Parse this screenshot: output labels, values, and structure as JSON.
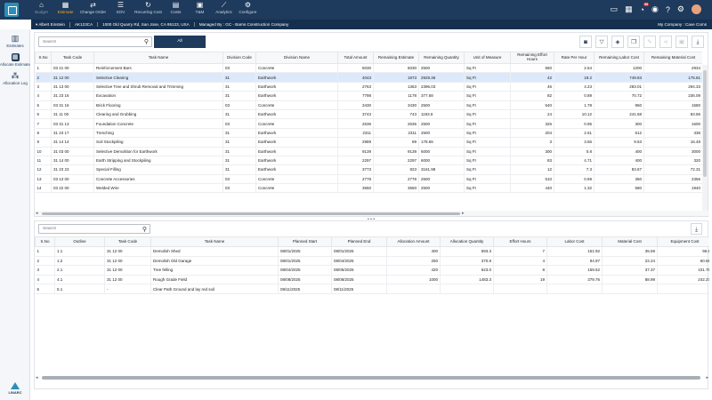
{
  "nav": [
    {
      "icon": "home-icon",
      "glyph": "⌂",
      "label": "Budget",
      "state": "dim"
    },
    {
      "icon": "calculator-icon",
      "glyph": "▦",
      "label": "Estimate",
      "state": "active"
    },
    {
      "icon": "change-order-icon",
      "glyph": "⇄",
      "label": "Change Order",
      "state": ""
    },
    {
      "icon": "sov-icon",
      "glyph": "☰",
      "label": "SOV",
      "state": ""
    },
    {
      "icon": "recurring-cost-icon",
      "glyph": "↻",
      "label": "Recurring Cost",
      "state": ""
    },
    {
      "icon": "costs-icon",
      "glyph": "▤",
      "label": "Costs",
      "state": ""
    },
    {
      "icon": "tm-icon",
      "glyph": "▣",
      "label": "T&M",
      "state": ""
    },
    {
      "icon": "analytics-icon",
      "glyph": "⟋",
      "label": "Analytics",
      "state": ""
    },
    {
      "icon": "configure-icon",
      "glyph": "⚙",
      "label": "Configure",
      "state": ""
    }
  ],
  "top_icons": {
    "notification_count": "99"
  },
  "subbar": {
    "user": "▾  Albert Einstein",
    "project_code": "AK123CA",
    "address": "1000 Old Quarry Rd, San Jose, CA 95123, USA",
    "managed_by": "Managed By : GC - Barns Construction Company",
    "company": "My Company : Cave Coms"
  },
  "sidebar": [
    {
      "icon": "estimates-icon",
      "glyph": "▥",
      "label": "Estimates",
      "active": false
    },
    {
      "icon": "allocate-estimate-icon",
      "glyph": "▦",
      "label": "Allocate Estimate",
      "active": true
    },
    {
      "icon": "allocation-log-icon",
      "glyph": "⁂",
      "label": "Allocation Log",
      "active": false
    }
  ],
  "brand": "LINARC",
  "top_panel": {
    "search_placeholder": "Search",
    "filter_label": "All",
    "columns": [
      "S.No",
      "Task Code",
      "Task Name",
      "Division Code",
      "Division Name",
      "Total Amount",
      "Remaining Estimate",
      "Remaining Quantity",
      "Unit of Measure",
      "Remaining Effort Hours",
      "Rate Per Hour",
      "Remaining Labor Cost",
      "Remaining Material Cost"
    ],
    "rows": [
      [
        "1",
        "03 21 00",
        "Reinforcement Bars",
        "03",
        "Concrete",
        "5030",
        "5030",
        "2500",
        "Sq Ft",
        "560",
        "2.54",
        "1200",
        "2934"
      ],
      [
        "2",
        "31 12 00",
        "Selective Clearing",
        "31",
        "Earthwork",
        "4043",
        "1973",
        "2929.36",
        "Sq Ft",
        "42",
        "19.2",
        "749.83",
        "175.81"
      ],
      [
        "3",
        "31 13 00",
        "Selective Tree and Shrub Removal and Trimming",
        "31",
        "Earthwork",
        "2763",
        "1363",
        "2396.03",
        "Sq Ft",
        "46",
        "4.23",
        "283.01",
        "294.33"
      ],
      [
        "4",
        "31 23 16",
        "Excavation",
        "31",
        "Earthwork",
        "7798",
        "1178",
        "377.68",
        "Sq Ft",
        "82",
        "0.89",
        "70.72",
        "236.09"
      ],
      [
        "5",
        "03 31 16",
        "Brick Flooring",
        "03",
        "Concrete",
        "3430",
        "3430",
        "2500",
        "Sq Ft",
        "540",
        "1.78",
        "960",
        "1580"
      ],
      [
        "6",
        "31 11 00",
        "Clearing and Grubbing",
        "31",
        "Earthwork",
        "3743",
        "743",
        "1193.6",
        "Sq Ft",
        "24",
        "10.12",
        "241.68",
        "83.56"
      ],
      [
        "7",
        "03 31 13",
        "Foundation Concrete",
        "03",
        "Concrete",
        "2636",
        "2636",
        "2500",
        "Sq Ft",
        "326",
        "0.95",
        "300",
        "1600"
      ],
      [
        "8",
        "31 23 17",
        "Trenching",
        "31",
        "Earthwork",
        "2311",
        "2311",
        "2500",
        "Sq Ft",
        "204",
        "2.51",
        "512",
        "336"
      ],
      [
        "9",
        "31 14 14",
        "Soil Stockpiling",
        "31",
        "Earthwork",
        "2989",
        "89",
        "178.66",
        "Sq Ft",
        "3",
        "3.56",
        "9.53",
        "16.48"
      ],
      [
        "10",
        "31 03 00",
        "Selective Demolition for Earthwork",
        "31",
        "Earthwork",
        "9139",
        "9139",
        "6000",
        "Sq Ft",
        "300",
        "0.8",
        "400",
        "3000"
      ],
      [
        "11",
        "31 14 00",
        "Earth Stripping and Stockpiling",
        "31",
        "Earthwork",
        "2297",
        "2297",
        "6000",
        "Sq Ft",
        "83",
        "4.71",
        "400",
        "320"
      ],
      [
        "12",
        "31 23 23",
        "Special Filling",
        "31",
        "Earthwork",
        "3773",
        "823",
        "3161.98",
        "Sq Ft",
        "12",
        "7.3",
        "83.67",
        "72.31"
      ],
      [
        "13",
        "03 13 00",
        "Concrete Accessories",
        "03",
        "Concrete",
        "2778",
        "2778",
        "2500",
        "Sq Ft",
        "510",
        "0.69",
        "350",
        "2356"
      ],
      [
        "14",
        "03 22 00",
        "Welded Wire",
        "03",
        "Concrete",
        "3550",
        "3550",
        "2500",
        "Sq Ft",
        "440",
        "1.32",
        "580",
        "1940"
      ]
    ]
  },
  "bottom_panel": {
    "search_placeholder": "Search",
    "columns": [
      "S.No",
      "Outline",
      "Task Code",
      "Task Name",
      "Planned Start",
      "Planned End",
      "Allocation Amount",
      "Allocation Quantity",
      "Effort Hours",
      "Labor Cost",
      "Material Cost",
      "Equipment Cost",
      "Subcontractor"
    ],
    "rows": [
      [
        "1",
        "1.1",
        "31 12 00",
        "Demolish Shed",
        "08/01/2025",
        "08/01/2025",
        "400",
        "593.3",
        "7",
        "151.92",
        "35.59",
        "96.9",
        ""
      ],
      [
        "2",
        "1.2",
        "31 12 00",
        "Demolish Old Garage",
        "08/01/2025",
        "08/04/2025",
        "250",
        "370.8",
        "4",
        "94.97",
        "22.24",
        "60.56",
        ""
      ],
      [
        "3",
        "2.1",
        "31 12 00",
        "Tree felling",
        "08/04/2025",
        "08/05/2025",
        "420",
        "623.0",
        "8",
        "159.52",
        "37.37",
        "101.75",
        ""
      ],
      [
        "4",
        "4.1",
        "31 12 00",
        "Rough Grade Field",
        "08/08/2025",
        "08/08/2025",
        "1000",
        "1483.3",
        "19",
        "379.76",
        "88.99",
        "242.27",
        ""
      ],
      [
        "5",
        "5.1",
        "-",
        "Clear Path Ground and lay red soil",
        "08/11/2025",
        "08/11/2025",
        "",
        "",
        "",
        "",
        "",
        "",
        ""
      ]
    ]
  }
}
